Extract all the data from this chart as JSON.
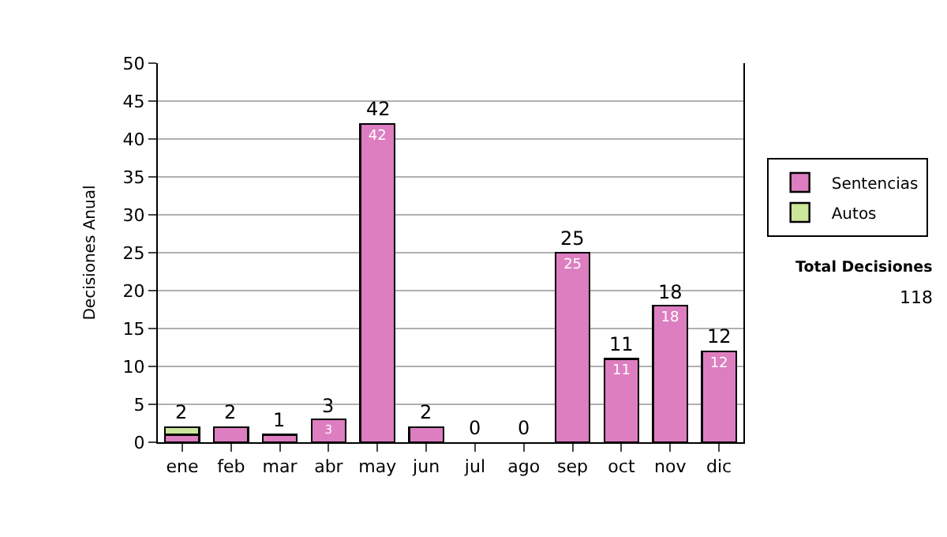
{
  "chart_data": {
    "type": "bar",
    "ylabel": "Decisiones Anual",
    "categories": [
      "ene",
      "feb",
      "mar",
      "abr",
      "may",
      "jun",
      "jul",
      "ago",
      "sep",
      "oct",
      "nov",
      "dic"
    ],
    "series": [
      {
        "name": "Sentencias",
        "color": "#dd7ec0",
        "values": [
          1,
          2,
          1,
          3,
          42,
          2,
          0,
          0,
          25,
          11,
          18,
          12
        ],
        "value_labels": [
          null,
          null,
          null,
          "3",
          "42",
          null,
          null,
          null,
          "25",
          "11",
          "18",
          "12"
        ]
      },
      {
        "name": "Autos",
        "color": "#cce69a",
        "values": [
          1,
          0,
          0,
          0,
          0,
          0,
          0,
          0,
          0,
          0,
          0,
          0
        ]
      }
    ],
    "stacked": true,
    "totals": [
      "2",
      "2",
      "1",
      "3",
      "42",
      "2",
      "0",
      "0",
      "25",
      "11",
      "18",
      "12"
    ],
    "ylim": [
      0,
      50
    ],
    "yticks": [
      0,
      5,
      10,
      15,
      20,
      25,
      30,
      35,
      40,
      45,
      50
    ],
    "grid": "y",
    "legend": "right",
    "annotations": [
      "Total Decisiones",
      "118"
    ]
  }
}
